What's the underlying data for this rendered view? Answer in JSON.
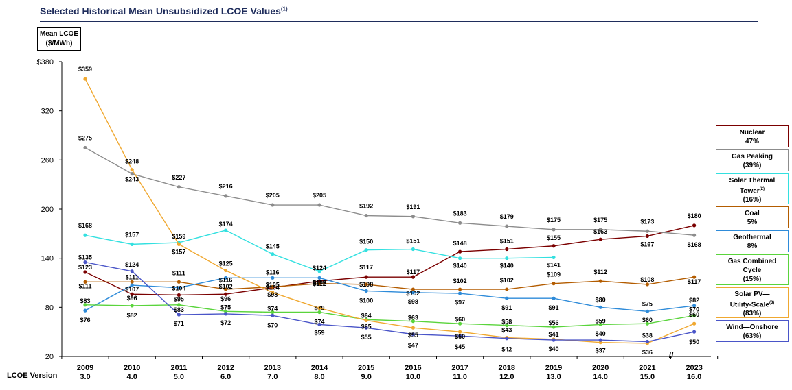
{
  "title": "Selected Historical Mean Unsubsidized LCOE Values",
  "title_footnote": "(1)",
  "y_axis_label_line1": "Mean LCOE",
  "y_axis_label_line2": "($/MWh)",
  "version_row_label": "LCOE Version",
  "axis_break_symbol": "//",
  "chart_data": {
    "type": "line",
    "x": [
      "2009",
      "2010",
      "2011",
      "2012",
      "2013",
      "2014",
      "2015",
      "2016",
      "2017",
      "2018",
      "2019",
      "2020",
      "2021",
      "2023"
    ],
    "versions": [
      "3.0",
      "4.0",
      "5.0",
      "6.0",
      "7.0",
      "8.0",
      "9.0",
      "10.0",
      "11.0",
      "12.0",
      "13.0",
      "14.0",
      "15.0",
      "16.0"
    ],
    "ylim": [
      20,
      380
    ],
    "yticks": [
      20,
      80,
      140,
      200,
      260,
      320,
      380
    ],
    "ytick_labels": [
      "20",
      "80",
      "140",
      "200",
      "260",
      "320",
      "$380"
    ],
    "series": [
      {
        "name": "Nuclear",
        "share": "47%",
        "color": "#7b0000",
        "values": [
          123,
          96,
          95,
          96,
          104,
          112,
          117,
          117,
          148,
          151,
          155,
          163,
          167,
          180
        ]
      },
      {
        "name": "Gas Peaking",
        "share": "(39%)",
        "color": "#8c8c8c",
        "values": [
          275,
          243,
          227,
          216,
          205,
          205,
          192,
          191,
          183,
          179,
          175,
          175,
          173,
          168
        ]
      },
      {
        "name": "Solar Thermal Tower",
        "share": "(16%)",
        "color": "#33e0e0",
        "values": [
          168,
          157,
          159,
          174,
          145,
          124,
          150,
          151,
          140,
          140,
          141,
          null,
          null,
          null
        ]
      },
      {
        "name": "Coal",
        "share": "5%",
        "color": "#b35c00",
        "values": [
          111,
          111,
          111,
          102,
          105,
          109,
          108,
          102,
          102,
          102,
          109,
          112,
          108,
          117
        ]
      },
      {
        "name": "Geothermal",
        "share": "8%",
        "color": "#2e8bd9",
        "values": [
          76,
          107,
          104,
          116,
          116,
          116,
          100,
          98,
          97,
          91,
          91,
          80,
          75,
          82
        ]
      },
      {
        "name": "Gas Combined Cycle",
        "share": "(15%)",
        "color": "#5ad43c",
        "values": [
          83,
          82,
          83,
          75,
          74,
          74,
          65,
          63,
          60,
          58,
          56,
          59,
          60,
          70
        ]
      },
      {
        "name": "Solar PV—Utility-Scale",
        "share": "(83%)",
        "color": "#f0a830",
        "values": [
          359,
          248,
          157,
          125,
          98,
          79,
          64,
          55,
          50,
          43,
          41,
          37,
          36,
          60
        ]
      },
      {
        "name": "Wind—Onshore",
        "share": "(63%)",
        "color": "#4a55c8",
        "values": [
          135,
          124,
          71,
          72,
          70,
          59,
          55,
          47,
          45,
          42,
          40,
          40,
          38,
          50
        ]
      }
    ]
  },
  "value_labels": [
    {
      "text": "$359",
      "x": 0,
      "v": 359,
      "dy": -14
    },
    {
      "text": "$275",
      "x": 0,
      "v": 275,
      "dy": -14
    },
    {
      "text": "$168",
      "x": 0,
      "v": 168,
      "dy": -14
    },
    {
      "text": "$135",
      "x": 0,
      "v": 135,
      "dy": -7
    },
    {
      "text": "$123",
      "x": 0,
      "v": 123,
      "dy": -7
    },
    {
      "text": "$111",
      "x": 0,
      "v": 111,
      "dy": 6
    },
    {
      "text": "$83",
      "x": 0,
      "v": 83,
      "dy": -6
    },
    {
      "text": "$76",
      "x": 0,
      "v": 76,
      "dy": 14
    },
    {
      "text": "$248",
      "x": 1,
      "v": 248,
      "dy": -12
    },
    {
      "text": "$243",
      "x": 1,
      "v": 243,
      "dy": 8
    },
    {
      "text": "$157",
      "x": 1,
      "v": 157,
      "dy": -14
    },
    {
      "text": "$124",
      "x": 1,
      "v": 124,
      "dy": -10
    },
    {
      "text": "$111",
      "x": 1,
      "v": 111,
      "dy": -7
    },
    {
      "text": "$107",
      "x": 1,
      "v": 107,
      "dy": 6
    },
    {
      "text": "$96",
      "x": 1,
      "v": 96,
      "dy": 6
    },
    {
      "text": "$82",
      "x": 1,
      "v": 82,
      "dy": 14
    },
    {
      "text": "$227",
      "x": 2,
      "v": 227,
      "dy": -14
    },
    {
      "text": "$159",
      "x": 2,
      "v": 159,
      "dy": -9
    },
    {
      "text": "$157",
      "x": 2,
      "v": 157,
      "dy": 11
    },
    {
      "text": "$111",
      "x": 2,
      "v": 111,
      "dy": -13
    },
    {
      "text": "$104",
      "x": 2,
      "v": 104,
      "dy": 1
    },
    {
      "text": "$95",
      "x": 2,
      "v": 95,
      "dy": 6
    },
    {
      "text": "$83",
      "x": 2,
      "v": 83,
      "dy": 7
    },
    {
      "text": "$71",
      "x": 2,
      "v": 71,
      "dy": 13
    },
    {
      "text": "$216",
      "x": 3,
      "v": 216,
      "dy": -14
    },
    {
      "text": "$174",
      "x": 3,
      "v": 174,
      "dy": -9
    },
    {
      "text": "$125",
      "x": 3,
      "v": 125,
      "dy": -10
    },
    {
      "text": "$116",
      "x": 3,
      "v": 116,
      "dy": 3
    },
    {
      "text": "$102",
      "x": 3,
      "v": 102,
      "dy": -4
    },
    {
      "text": "$96",
      "x": 3,
      "v": 96,
      "dy": 7
    },
    {
      "text": "$75",
      "x": 3,
      "v": 75,
      "dy": -6
    },
    {
      "text": "$72",
      "x": 3,
      "v": 72,
      "dy": 13
    },
    {
      "text": "$205",
      "x": 4,
      "v": 205,
      "dy": -14
    },
    {
      "text": "$145",
      "x": 4,
      "v": 145,
      "dy": -11
    },
    {
      "text": "$116",
      "x": 4,
      "v": 116,
      "dy": -8
    },
    {
      "text": "$105",
      "x": 4,
      "v": 105,
      "dy": -3
    },
    {
      "text": "$104",
      "x": 4,
      "v": 104,
      "dy": 0
    },
    {
      "text": "$98",
      "x": 4,
      "v": 98,
      "dy": 3
    },
    {
      "text": "$74",
      "x": 4,
      "v": 74,
      "dy": -5
    },
    {
      "text": "$70",
      "x": 4,
      "v": 70,
      "dy": 14
    },
    {
      "text": "$205",
      "x": 5,
      "v": 205,
      "dy": -14
    },
    {
      "text": "$124",
      "x": 5,
      "v": 124,
      "dy": -5
    },
    {
      "text": "$116",
      "x": 5,
      "v": 116,
      "dy": 6
    },
    {
      "text": "$112",
      "x": 5,
      "v": 112,
      "dy": 4
    },
    {
      "text": "$109",
      "x": 5,
      "v": 109,
      "dy": -1
    },
    {
      "text": "$79",
      "x": 5,
      "v": 79,
      "dy": 0
    },
    {
      "text": "$74",
      "x": 5,
      "v": 74,
      "dy": 14
    },
    {
      "text": "$59",
      "x": 5,
      "v": 59,
      "dy": 12
    },
    {
      "text": "$192",
      "x": 6,
      "v": 192,
      "dy": -14
    },
    {
      "text": "$150",
      "x": 6,
      "v": 150,
      "dy": -12
    },
    {
      "text": "$117",
      "x": 6,
      "v": 117,
      "dy": -14
    },
    {
      "text": "$108",
      "x": 6,
      "v": 108,
      "dy": 0
    },
    {
      "text": "$100",
      "x": 6,
      "v": 100,
      "dy": 14
    },
    {
      "text": "$64",
      "x": 6,
      "v": 64,
      "dy": -7
    },
    {
      "text": "$65",
      "x": 6,
      "v": 65,
      "dy": 10
    },
    {
      "text": "$55",
      "x": 6,
      "v": 55,
      "dy": 14
    },
    {
      "text": "$191",
      "x": 7,
      "v": 191,
      "dy": -14
    },
    {
      "text": "$151",
      "x": 7,
      "v": 151,
      "dy": -12
    },
    {
      "text": "$117",
      "x": 7,
      "v": 117,
      "dy": -7
    },
    {
      "text": "$102",
      "x": 7,
      "v": 102,
      "dy": 6
    },
    {
      "text": "$98",
      "x": 7,
      "v": 98,
      "dy": 13
    },
    {
      "text": "$63",
      "x": 7,
      "v": 63,
      "dy": -5
    },
    {
      "text": "$55",
      "x": 7,
      "v": 55,
      "dy": 11
    },
    {
      "text": "$47",
      "x": 7,
      "v": 47,
      "dy": 16
    },
    {
      "text": "$183",
      "x": 8,
      "v": 183,
      "dy": -14
    },
    {
      "text": "$148",
      "x": 8,
      "v": 148,
      "dy": -12
    },
    {
      "text": "$140",
      "x": 8,
      "v": 140,
      "dy": 11
    },
    {
      "text": "$102",
      "x": 8,
      "v": 102,
      "dy": -12
    },
    {
      "text": "$97",
      "x": 8,
      "v": 97,
      "dy": 13
    },
    {
      "text": "$60",
      "x": 8,
      "v": 60,
      "dy": -6
    },
    {
      "text": "$50",
      "x": 8,
      "v": 50,
      "dy": 7
    },
    {
      "text": "$45",
      "x": 8,
      "v": 45,
      "dy": 16
    },
    {
      "text": "$179",
      "x": 9,
      "v": 179,
      "dy": -14
    },
    {
      "text": "$151",
      "x": 9,
      "v": 151,
      "dy": -12
    },
    {
      "text": "$140",
      "x": 9,
      "v": 140,
      "dy": 11
    },
    {
      "text": "$102",
      "x": 9,
      "v": 102,
      "dy": -13
    },
    {
      "text": "$91",
      "x": 9,
      "v": 91,
      "dy": 14
    },
    {
      "text": "$58",
      "x": 9,
      "v": 58,
      "dy": -5
    },
    {
      "text": "$43",
      "x": 9,
      "v": 43,
      "dy": -11
    },
    {
      "text": "$42",
      "x": 9,
      "v": 42,
      "dy": 16
    },
    {
      "text": "$175",
      "x": 10,
      "v": 175,
      "dy": -14
    },
    {
      "text": "$155",
      "x": 10,
      "v": 155,
      "dy": -12
    },
    {
      "text": "$141",
      "x": 10,
      "v": 141,
      "dy": 11
    },
    {
      "text": "$109",
      "x": 10,
      "v": 109,
      "dy": -13
    },
    {
      "text": "$91",
      "x": 10,
      "v": 91,
      "dy": 14
    },
    {
      "text": "$56",
      "x": 10,
      "v": 56,
      "dy": -6
    },
    {
      "text": "$41",
      "x": 10,
      "v": 41,
      "dy": -7
    },
    {
      "text": "$40",
      "x": 10,
      "v": 40,
      "dy": 13
    },
    {
      "text": "$175",
      "x": 11,
      "v": 175,
      "dy": -14
    },
    {
      "text": "$163",
      "x": 11,
      "v": 163,
      "dy": -11
    },
    {
      "text": "$112",
      "x": 11,
      "v": 112,
      "dy": -13
    },
    {
      "text": "$80",
      "x": 11,
      "v": 80,
      "dy": -11
    },
    {
      "text": "$59",
      "x": 11,
      "v": 59,
      "dy": -5
    },
    {
      "text": "$40",
      "x": 11,
      "v": 40,
      "dy": -9
    },
    {
      "text": "$37",
      "x": 11,
      "v": 37,
      "dy": 12
    },
    {
      "text": "$173",
      "x": 12,
      "v": 173,
      "dy": -14
    },
    {
      "text": "$167",
      "x": 12,
      "v": 167,
      "dy": 12
    },
    {
      "text": "$108",
      "x": 12,
      "v": 108,
      "dy": -7
    },
    {
      "text": "$75",
      "x": 12,
      "v": 75,
      "dy": -11
    },
    {
      "text": "$60",
      "x": 12,
      "v": 60,
      "dy": -5
    },
    {
      "text": "$38",
      "x": 12,
      "v": 38,
      "dy": -9
    },
    {
      "text": "$36",
      "x": 12,
      "v": 36,
      "dy": 13
    },
    {
      "text": "$180",
      "x": 13,
      "v": 180,
      "dy": -14
    },
    {
      "text": "$168",
      "x": 13,
      "v": 168,
      "dy": 14
    },
    {
      "text": "$117",
      "x": 13,
      "v": 117,
      "dy": 7
    },
    {
      "text": "$82",
      "x": 13,
      "v": 82,
      "dy": -8
    },
    {
      "text": "$70",
      "x": 13,
      "v": 70,
      "dy": -9
    },
    {
      "text": "$60",
      "x": 13,
      "v": 60,
      "dy": -13
    },
    {
      "text": "$50",
      "x": 13,
      "v": 50,
      "dy": 15
    }
  ],
  "legend": [
    {
      "lines": [
        "Nuclear",
        "47%"
      ],
      "color": "#7b0000"
    },
    {
      "lines": [
        "Gas Peaking",
        "(39%)"
      ],
      "color": "#8c8c8c"
    },
    {
      "lines": [
        "Solar Thermal",
        "Tower",
        "(16%)"
      ],
      "sup_line": 1,
      "sup": "(2)",
      "color": "#33e0e0"
    },
    {
      "lines": [
        "Coal",
        "5%"
      ],
      "color": "#b35c00"
    },
    {
      "lines": [
        "Geothermal",
        "8%"
      ],
      "color": "#2e8bd9"
    },
    {
      "lines": [
        "Gas Combined",
        "Cycle",
        "(15%)"
      ],
      "color": "#5ad43c"
    },
    {
      "lines": [
        "Solar PV—",
        "Utility-Scale",
        "(83%)"
      ],
      "sup_line": 1,
      "sup": "(3)",
      "color": "#f0a830"
    },
    {
      "lines": [
        "Wind—Onshore",
        "(63%)"
      ],
      "color": "#4a55c8"
    }
  ]
}
